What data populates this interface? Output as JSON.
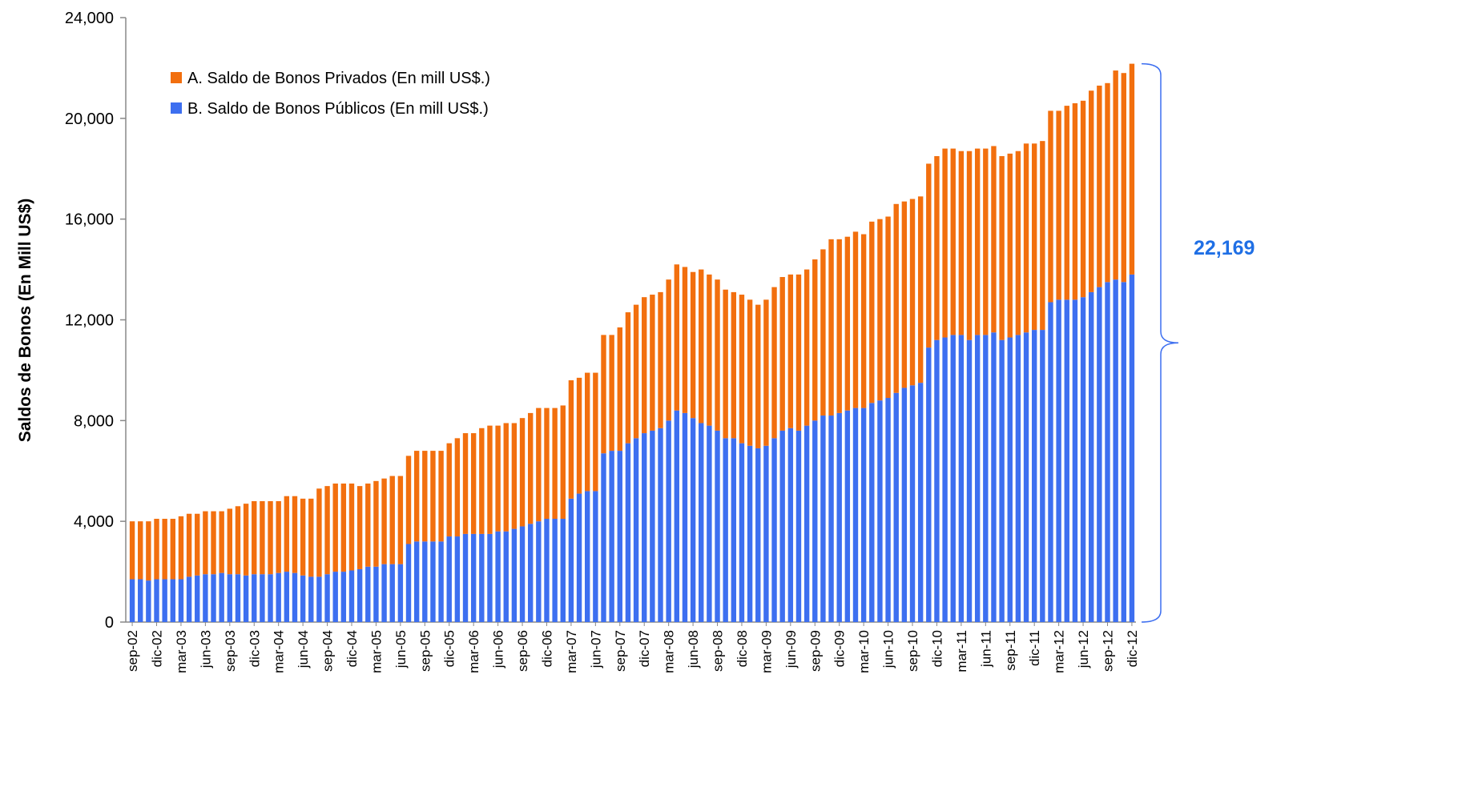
{
  "chart_data": {
    "type": "stacked_bar",
    "y_axis_label": "Saldos de Bonos (En Mill US$)",
    "annotation": "22,169",
    "categories": [
      "sep-02",
      null,
      null,
      "dic-02",
      null,
      null,
      "mar-03",
      null,
      null,
      "jun-03",
      null,
      null,
      "sep-03",
      null,
      null,
      "dic-03",
      null,
      null,
      "mar-04",
      null,
      null,
      "jun-04",
      null,
      null,
      "sep-04",
      null,
      null,
      "dic-04",
      null,
      null,
      "mar-05",
      null,
      null,
      "jun-05",
      null,
      null,
      "sep-05",
      null,
      null,
      "dic-05",
      null,
      null,
      "mar-06",
      null,
      null,
      "jun-06",
      null,
      null,
      "sep-06",
      null,
      null,
      "dic-06",
      null,
      null,
      "mar-07",
      null,
      null,
      "jun-07",
      null,
      null,
      "sep-07",
      null,
      null,
      "dic-07",
      null,
      null,
      "mar-08",
      null,
      null,
      "jun-08",
      null,
      null,
      "sep-08",
      null,
      null,
      "dic-08",
      null,
      null,
      "mar-09",
      null,
      null,
      "jun-09",
      null,
      null,
      "sep-09",
      null,
      null,
      "dic-09",
      null,
      null,
      "mar-10",
      null,
      null,
      "jun-10",
      null,
      null,
      "sep-10",
      null,
      null,
      "dic-10",
      null,
      null,
      "mar-11",
      null,
      null,
      "jun-11",
      null,
      null,
      "sep-11",
      null,
      null,
      "dic-11",
      null,
      null,
      "mar-12",
      null,
      null,
      "jun-12",
      null,
      null,
      "sep-12",
      null,
      null,
      "dic-12"
    ],
    "series": [
      {
        "name": "A. Saldo de Bonos Privados (En mill US$.)",
        "color": "#f26f0e",
        "values": [
          2300,
          2300,
          2350,
          2400,
          2400,
          2400,
          2500,
          2500,
          2450,
          2500,
          2500,
          2450,
          2600,
          2700,
          2850,
          2900,
          2900,
          2900,
          2850,
          3000,
          3050,
          3050,
          3100,
          3500,
          3500,
          3500,
          3500,
          3450,
          3300,
          3300,
          3400,
          3400,
          3500,
          3500,
          3500,
          3600,
          3600,
          3600,
          3600,
          3700,
          3900,
          4000,
          4000,
          4200,
          4300,
          4200,
          4300,
          4200,
          4300,
          4400,
          4500,
          4400,
          4400,
          4500,
          4700,
          4600,
          4700,
          4700,
          4700,
          4600,
          4900,
          5200,
          5300,
          5400,
          5400,
          5400,
          5600,
          5800,
          5800,
          5800,
          6100,
          6000,
          6000,
          5900,
          5800,
          5900,
          5800,
          5700,
          5800,
          6000,
          6100,
          6100,
          6200,
          6200,
          6400,
          6600,
          7000,
          6900,
          6900,
          7000,
          6900,
          7200,
          7200,
          7200,
          7500,
          7400,
          7400,
          7400,
          7300,
          7300,
          7500,
          7400,
          7300,
          7500,
          7400,
          7400,
          7400,
          7300,
          7300,
          7300,
          7500,
          7400,
          7500,
          7600,
          7500,
          7700,
          7800,
          7800,
          8000,
          8000,
          7900,
          8300,
          8300,
          8369
        ]
      },
      {
        "name": "B. Saldo de Bonos Públicos (En mill US$.)",
        "color": "#3d6ff0",
        "values": [
          1700,
          1700,
          1650,
          1700,
          1700,
          1700,
          1700,
          1800,
          1850,
          1900,
          1900,
          1950,
          1900,
          1900,
          1850,
          1900,
          1900,
          1900,
          1950,
          2000,
          1950,
          1850,
          1800,
          1800,
          1900,
          2000,
          2000,
          2050,
          2100,
          2200,
          2200,
          2300,
          2300,
          2300,
          3100,
          3200,
          3200,
          3200,
          3200,
          3400,
          3400,
          3500,
          3500,
          3500,
          3500,
          3600,
          3600,
          3700,
          3800,
          3900,
          4000,
          4100,
          4100,
          4100,
          4900,
          5100,
          5200,
          5200,
          6700,
          6800,
          6800,
          7100,
          7300,
          7500,
          7600,
          7700,
          8000,
          8400,
          8300,
          8100,
          7900,
          7800,
          7600,
          7300,
          7300,
          7100,
          7000,
          6900,
          7000,
          7300,
          7600,
          7700,
          7600,
          7800,
          8000,
          8200,
          8200,
          8300,
          8400,
          8500,
          8500,
          8700,
          8800,
          8900,
          9100,
          9300,
          9400,
          9500,
          10900,
          11200,
          11300,
          11400,
          11400,
          11200,
          11400,
          11400,
          11500,
          11200,
          11300,
          11400,
          11500,
          11600,
          11600,
          12700,
          12800,
          12800,
          12800,
          12900,
          13100,
          13300,
          13500,
          13600,
          13500,
          13800
        ]
      }
    ],
    "ylim": [
      0,
      24000
    ],
    "yticks": [
      0,
      {
        "value": 4000,
        "label": "4,000"
      },
      {
        "value": 8000,
        "label": "8,000"
      },
      {
        "value": 12000,
        "label": "12,000"
      },
      {
        "value": 16000,
        "label": "16,000"
      },
      {
        "value": 20000,
        "label": "20,000"
      },
      {
        "value": 24000,
        "label": "24,000"
      }
    ],
    "annotation_color": "#1f6fe5",
    "legend": "upper left"
  }
}
